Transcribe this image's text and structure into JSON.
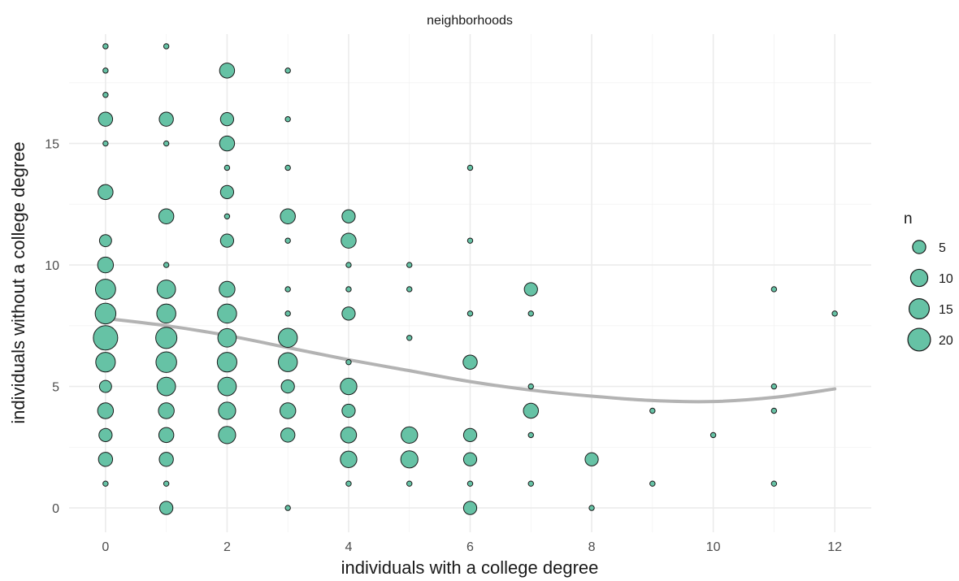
{
  "chart_data": {
    "type": "scatter",
    "title": "neighborhoods",
    "xlabel": "individuals with a college degree",
    "ylabel": "individuals without a college degree",
    "xlim": [
      -0.6,
      12.6
    ],
    "ylim": [
      -1,
      19.5
    ],
    "x_ticks": [
      0,
      2,
      4,
      6,
      8,
      10,
      12
    ],
    "y_ticks": [
      0,
      5,
      10,
      15
    ],
    "grid": true,
    "point_color": "#66c2a5",
    "point_stroke": "#1a1a1a",
    "smooth_color": "#b3b3b3",
    "legend": {
      "title": "n",
      "placement": "right",
      "entries": [
        {
          "label": "5",
          "value": 5
        },
        {
          "label": "10",
          "value": 10
        },
        {
          "label": "15",
          "value": 15
        },
        {
          "label": "20",
          "value": 20
        }
      ]
    },
    "points": [
      {
        "x": 0,
        "y": 19,
        "n": 1
      },
      {
        "x": 0,
        "y": 18,
        "n": 1
      },
      {
        "x": 0,
        "y": 17,
        "n": 1
      },
      {
        "x": 0,
        "y": 16,
        "n": 6
      },
      {
        "x": 0,
        "y": 15,
        "n": 1
      },
      {
        "x": 0,
        "y": 13,
        "n": 7
      },
      {
        "x": 0,
        "y": 11,
        "n": 4
      },
      {
        "x": 0,
        "y": 10,
        "n": 8
      },
      {
        "x": 0,
        "y": 9,
        "n": 15
      },
      {
        "x": 0,
        "y": 8,
        "n": 16
      },
      {
        "x": 0,
        "y": 7,
        "n": 24
      },
      {
        "x": 0,
        "y": 6,
        "n": 14
      },
      {
        "x": 0,
        "y": 5,
        "n": 4
      },
      {
        "x": 0,
        "y": 4,
        "n": 8
      },
      {
        "x": 0,
        "y": 3,
        "n": 5
      },
      {
        "x": 0,
        "y": 2,
        "n": 6
      },
      {
        "x": 0,
        "y": 1,
        "n": 1
      },
      {
        "x": 1,
        "y": 19,
        "n": 1
      },
      {
        "x": 1,
        "y": 16,
        "n": 6
      },
      {
        "x": 1,
        "y": 15,
        "n": 1
      },
      {
        "x": 1,
        "y": 12,
        "n": 7
      },
      {
        "x": 1,
        "y": 10,
        "n": 1
      },
      {
        "x": 1,
        "y": 9,
        "n": 12
      },
      {
        "x": 1,
        "y": 8,
        "n": 13
      },
      {
        "x": 1,
        "y": 7,
        "n": 17
      },
      {
        "x": 1,
        "y": 6,
        "n": 16
      },
      {
        "x": 1,
        "y": 5,
        "n": 12
      },
      {
        "x": 1,
        "y": 4,
        "n": 8
      },
      {
        "x": 1,
        "y": 3,
        "n": 7
      },
      {
        "x": 1,
        "y": 2,
        "n": 6
      },
      {
        "x": 1,
        "y": 1,
        "n": 1
      },
      {
        "x": 1,
        "y": 0,
        "n": 5
      },
      {
        "x": 2,
        "y": 18,
        "n": 7
      },
      {
        "x": 2,
        "y": 16,
        "n": 5
      },
      {
        "x": 2,
        "y": 15,
        "n": 7
      },
      {
        "x": 2,
        "y": 14,
        "n": 1
      },
      {
        "x": 2,
        "y": 13,
        "n": 5
      },
      {
        "x": 2,
        "y": 12,
        "n": 1
      },
      {
        "x": 2,
        "y": 11,
        "n": 5
      },
      {
        "x": 2,
        "y": 9,
        "n": 8
      },
      {
        "x": 2,
        "y": 8,
        "n": 13
      },
      {
        "x": 2,
        "y": 7,
        "n": 12
      },
      {
        "x": 2,
        "y": 6,
        "n": 14
      },
      {
        "x": 2,
        "y": 5,
        "n": 12
      },
      {
        "x": 2,
        "y": 4,
        "n": 10
      },
      {
        "x": 2,
        "y": 3,
        "n": 10
      },
      {
        "x": 3,
        "y": 18,
        "n": 1
      },
      {
        "x": 3,
        "y": 16,
        "n": 1
      },
      {
        "x": 3,
        "y": 14,
        "n": 1
      },
      {
        "x": 3,
        "y": 12,
        "n": 7
      },
      {
        "x": 3,
        "y": 11,
        "n": 1
      },
      {
        "x": 3,
        "y": 9,
        "n": 1
      },
      {
        "x": 3,
        "y": 8,
        "n": 1
      },
      {
        "x": 3,
        "y": 7,
        "n": 13
      },
      {
        "x": 3,
        "y": 6,
        "n": 13
      },
      {
        "x": 3,
        "y": 5,
        "n": 5
      },
      {
        "x": 3,
        "y": 4,
        "n": 8
      },
      {
        "x": 3,
        "y": 3,
        "n": 6
      },
      {
        "x": 3,
        "y": 0,
        "n": 1
      },
      {
        "x": 4,
        "y": 12,
        "n": 5
      },
      {
        "x": 4,
        "y": 11,
        "n": 7
      },
      {
        "x": 4,
        "y": 10,
        "n": 1
      },
      {
        "x": 4,
        "y": 9,
        "n": 1
      },
      {
        "x": 4,
        "y": 8,
        "n": 5
      },
      {
        "x": 4,
        "y": 6,
        "n": 1
      },
      {
        "x": 4,
        "y": 5,
        "n": 9
      },
      {
        "x": 4,
        "y": 4,
        "n": 5
      },
      {
        "x": 4,
        "y": 3,
        "n": 8
      },
      {
        "x": 4,
        "y": 2,
        "n": 9
      },
      {
        "x": 4,
        "y": 1,
        "n": 1
      },
      {
        "x": 5,
        "y": 10,
        "n": 1
      },
      {
        "x": 5,
        "y": 9,
        "n": 1
      },
      {
        "x": 5,
        "y": 7,
        "n": 1
      },
      {
        "x": 5,
        "y": 3,
        "n": 9
      },
      {
        "x": 5,
        "y": 2,
        "n": 10
      },
      {
        "x": 5,
        "y": 1,
        "n": 1
      },
      {
        "x": 6,
        "y": 14,
        "n": 1
      },
      {
        "x": 6,
        "y": 11,
        "n": 1
      },
      {
        "x": 6,
        "y": 8,
        "n": 1
      },
      {
        "x": 6,
        "y": 6,
        "n": 6
      },
      {
        "x": 6,
        "y": 3,
        "n": 5
      },
      {
        "x": 6,
        "y": 2,
        "n": 5
      },
      {
        "x": 6,
        "y": 1,
        "n": 1
      },
      {
        "x": 6,
        "y": 0,
        "n": 5
      },
      {
        "x": 7,
        "y": 9,
        "n": 5
      },
      {
        "x": 7,
        "y": 8,
        "n": 1
      },
      {
        "x": 7,
        "y": 5,
        "n": 1
      },
      {
        "x": 7,
        "y": 4,
        "n": 7
      },
      {
        "x": 7,
        "y": 3,
        "n": 1
      },
      {
        "x": 7,
        "y": 1,
        "n": 1
      },
      {
        "x": 8,
        "y": 2,
        "n": 5
      },
      {
        "x": 8,
        "y": 0,
        "n": 1
      },
      {
        "x": 9,
        "y": 4,
        "n": 1
      },
      {
        "x": 9,
        "y": 1,
        "n": 1
      },
      {
        "x": 10,
        "y": 3,
        "n": 1
      },
      {
        "x": 11,
        "y": 9,
        "n": 1
      },
      {
        "x": 11,
        "y": 5,
        "n": 1
      },
      {
        "x": 11,
        "y": 4,
        "n": 1
      },
      {
        "x": 11,
        "y": 1,
        "n": 1
      },
      {
        "x": 12,
        "y": 8,
        "n": 1
      }
    ],
    "smooth": {
      "x": [
        0,
        1,
        2,
        3,
        4,
        5,
        6,
        7,
        8,
        9,
        10,
        11,
        12
      ],
      "y": [
        7.8,
        7.5,
        7.1,
        6.6,
        6.1,
        5.65,
        5.2,
        4.85,
        4.6,
        4.42,
        4.38,
        4.55,
        4.9
      ]
    }
  }
}
